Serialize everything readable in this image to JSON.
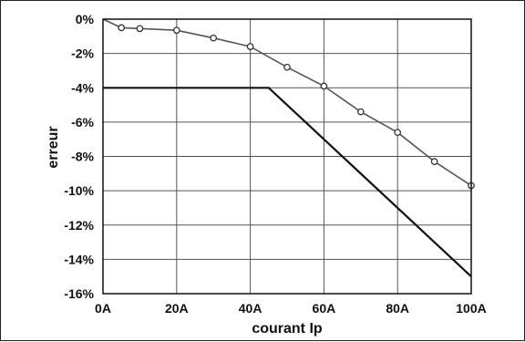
{
  "chart_data": {
    "type": "line",
    "xlabel": "courant Ip",
    "ylabel": "erreur",
    "xlim": [
      0,
      100
    ],
    "ylim": [
      -16,
      0
    ],
    "x_tick_labels": [
      "0A",
      "20A",
      "40A",
      "60A",
      "80A",
      "100A"
    ],
    "x_ticks": [
      0,
      20,
      40,
      60,
      80,
      100
    ],
    "y_tick_labels": [
      "0%",
      "-2%",
      "-4%",
      "-6%",
      "-8%",
      "-10%",
      "-12%",
      "-14%",
      "-16%"
    ],
    "y_ticks": [
      0,
      -2,
      -4,
      -6,
      -8,
      -10,
      -12,
      -14,
      -16
    ],
    "grid": true,
    "series": [
      {
        "x": [
          0,
          5,
          10,
          20,
          30,
          40,
          50,
          60,
          70,
          80,
          90,
          100
        ],
        "y": [
          0,
          -0.5,
          -0.55,
          -0.65,
          -1.1,
          -1.6,
          -2.8,
          -3.9,
          -5.4,
          -6.6,
          -8.3,
          -9.7
        ],
        "markers": true,
        "color": "#555555"
      },
      {
        "x": [
          0,
          45,
          100
        ],
        "y": [
          -4,
          -4,
          -15
        ],
        "markers": false,
        "color": "#111111"
      }
    ]
  }
}
